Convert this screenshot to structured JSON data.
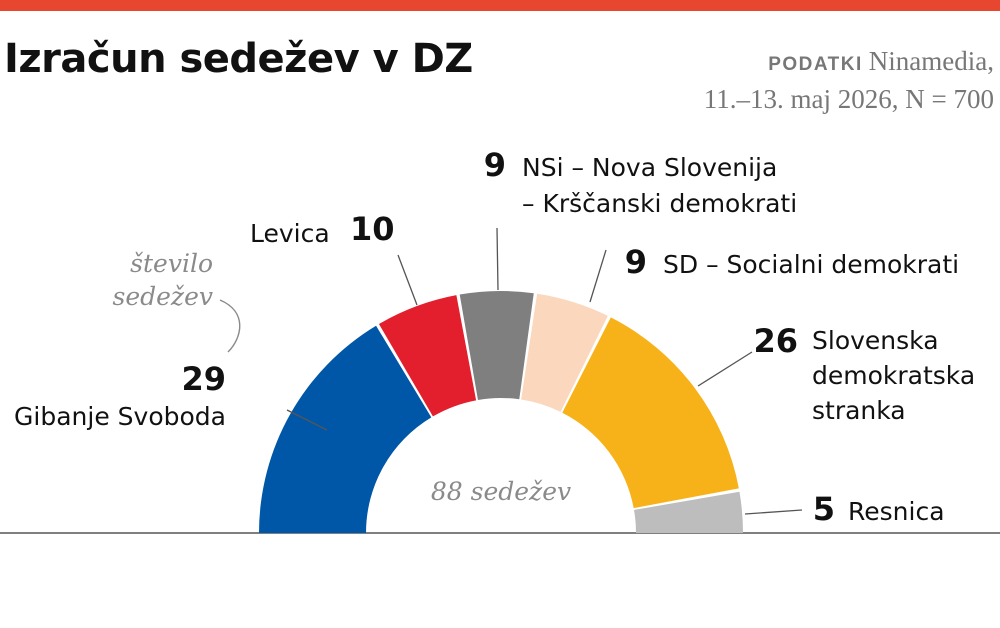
{
  "header": {
    "title": "Izračun sedežev v DZ",
    "source_label": "PODATKI",
    "source_name": "Ninamedia,",
    "source_detail": "11.–13. maj 2026, N = 700"
  },
  "chart_data": {
    "type": "parliament-semicircle",
    "title": "Izračun sedežev v DZ",
    "total_label": "88 sedežev",
    "annotation": [
      "število",
      "sedežev"
    ],
    "total": 88,
    "series": [
      {
        "name": "Gibanje Svoboda",
        "value": 29,
        "label": "29",
        "color": "#0057a8",
        "name_lines": [
          "Gibanje Svoboda"
        ]
      },
      {
        "name": "Levica",
        "value": 10,
        "label": "10",
        "color": "#e31e2d",
        "name_lines": [
          "Levica"
        ]
      },
      {
        "name": "NSi – Nova Slovenija – Krščanski demokrati",
        "value": 9,
        "label": "9",
        "color": "#7f7f7f",
        "name_lines": [
          "NSi – Nova Slovenija",
          "– Krščanski demokrati"
        ]
      },
      {
        "name": "SD – Socialni demokrati",
        "value": 9,
        "label": "9",
        "color": "#fad7bd",
        "name_lines": [
          "SD – Socialni demokrati"
        ]
      },
      {
        "name": "Slovenska demokratska stranka",
        "value": 26,
        "label": "26",
        "color": "#f8b219",
        "name_lines": [
          "Slovenska",
          "demokratska",
          "stranka"
        ]
      },
      {
        "name": "Resnica",
        "value": 5,
        "label": "5",
        "color": "#bdbdbd",
        "name_lines": [
          "Resnica"
        ]
      }
    ]
  }
}
